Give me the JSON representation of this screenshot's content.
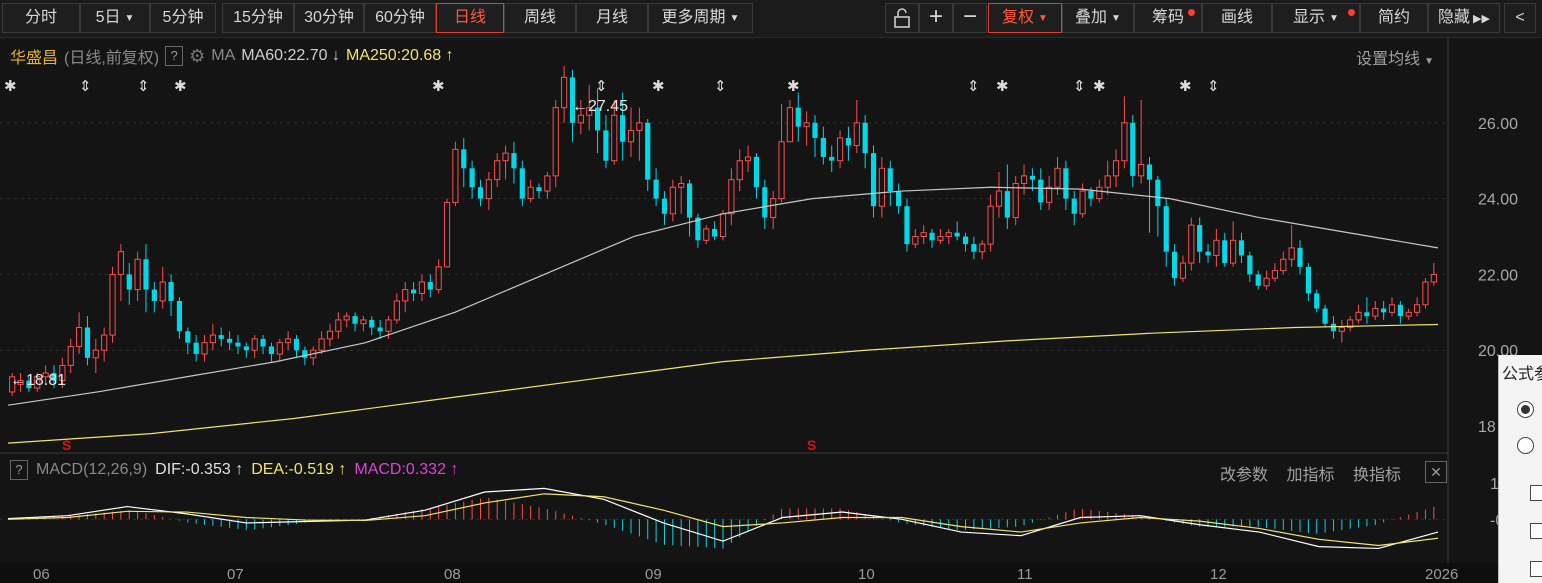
{
  "toolbar": {
    "periods": [
      "分时",
      "5日",
      "5分钟",
      "15分钟",
      "30分钟",
      "60分钟",
      "日线",
      "周线",
      "月线",
      "更多周期"
    ],
    "active_period": "日线",
    "tools": [
      "复权",
      "叠加",
      "筹码",
      "画线",
      "显示",
      "简约",
      "隐藏"
    ],
    "active_tool": "复权",
    "icons": [
      "unlock-icon",
      "plus-icon",
      "minus-icon",
      "fast-forward-icon",
      "chevron-left-icon"
    ]
  },
  "legend": {
    "name": "华盛昌",
    "mode": "(日线,前复权)",
    "help": "?",
    "ma_label": "MA",
    "ma60": "MA60:22.70",
    "ma60_arrow": "↓",
    "ma250": "MA250:20.68",
    "ma250_arrow": "↑",
    "settings": "设置均线"
  },
  "y_axis": {
    "labels": [
      "26.00",
      "24.00",
      "22.00",
      "20.00",
      "18"
    ]
  },
  "x_axis": {
    "labels": [
      "06",
      "07",
      "08",
      "09",
      "10",
      "11",
      "12",
      "2026"
    ]
  },
  "annotations": {
    "high": "27.45",
    "low": "18.81",
    "signal_marker": "S"
  },
  "macd": {
    "help": "?",
    "title": "MACD(12,26,9)",
    "dif": "DIF:-0.353",
    "dif_arrow": "↑",
    "dea": "DEA:-0.519",
    "dea_arrow": "↑",
    "macd": "MACD:0.332",
    "macd_arrow": "↑",
    "actions": [
      "改参数",
      "加指标",
      "换指标"
    ],
    "close": "✕",
    "y_labels": [
      "1",
      "-0"
    ]
  },
  "side_panel": {
    "title": "公式参"
  },
  "colors": {
    "up": "#ff4d4d",
    "down": "#00d8e8",
    "ma60": "#c8c8c8",
    "ma250": "#f3e36b",
    "dif": "#ffffff",
    "dea": "#f3e36b",
    "bg": "#141414"
  },
  "chart_data": {
    "type": "candlestick",
    "title": "华盛昌 (日线,前复权)",
    "ylim": [
      17.5,
      28
    ],
    "candles": [
      [
        18.9,
        19.3,
        19.4,
        18.8
      ],
      [
        19.1,
        19.2,
        19.4,
        18.9
      ],
      [
        19.2,
        19.0,
        19.3,
        18.9
      ],
      [
        19.0,
        19.3,
        19.4,
        18.9
      ],
      [
        19.3,
        19.4,
        19.6,
        19.1
      ],
      [
        19.4,
        19.2,
        19.6,
        19.0
      ],
      [
        19.2,
        19.6,
        19.8,
        19.0
      ],
      [
        19.6,
        20.1,
        20.3,
        19.4
      ],
      [
        20.1,
        20.6,
        21.0,
        19.9
      ],
      [
        20.6,
        19.8,
        20.9,
        19.6
      ],
      [
        19.8,
        20.0,
        20.3,
        19.4
      ],
      [
        20.0,
        20.4,
        20.6,
        19.7
      ],
      [
        20.4,
        22.0,
        22.2,
        20.2
      ],
      [
        22.0,
        22.6,
        22.8,
        21.3
      ],
      [
        22.0,
        21.6,
        22.3,
        21.2
      ],
      [
        21.6,
        22.4,
        22.6,
        21.3
      ],
      [
        22.4,
        21.6,
        22.8,
        21.0
      ],
      [
        21.6,
        21.3,
        21.8,
        21.0
      ],
      [
        21.3,
        21.8,
        22.2,
        21.1
      ],
      [
        21.8,
        21.3,
        22.0,
        20.9
      ],
      [
        21.3,
        20.5,
        21.4,
        20.3
      ],
      [
        20.5,
        20.2,
        20.6,
        19.9
      ],
      [
        20.2,
        19.9,
        20.4,
        19.7
      ],
      [
        19.9,
        20.2,
        20.4,
        19.7
      ],
      [
        20.2,
        20.4,
        20.7,
        20.0
      ],
      [
        20.4,
        20.3,
        20.6,
        20.1
      ],
      [
        20.3,
        20.2,
        20.5,
        20.0
      ],
      [
        20.2,
        20.1,
        20.4,
        19.9
      ],
      [
        20.1,
        20.0,
        20.2,
        19.8
      ],
      [
        20.0,
        20.3,
        20.4,
        19.8
      ],
      [
        20.3,
        20.1,
        20.4,
        19.9
      ],
      [
        20.1,
        19.9,
        20.2,
        19.7
      ],
      [
        19.9,
        20.2,
        20.3,
        19.7
      ],
      [
        20.2,
        20.3,
        20.5,
        20.0
      ],
      [
        20.3,
        20.0,
        20.4,
        19.8
      ],
      [
        20.0,
        19.8,
        20.1,
        19.6
      ],
      [
        19.8,
        20.0,
        20.1,
        19.6
      ],
      [
        20.0,
        20.3,
        20.5,
        19.9
      ],
      [
        20.3,
        20.5,
        20.7,
        20.1
      ],
      [
        20.5,
        20.8,
        21.0,
        20.3
      ],
      [
        20.8,
        20.9,
        21.0,
        20.6
      ],
      [
        20.9,
        20.7,
        21.0,
        20.5
      ],
      [
        20.7,
        20.8,
        20.9,
        20.5
      ],
      [
        20.8,
        20.6,
        20.9,
        20.4
      ],
      [
        20.6,
        20.5,
        20.8,
        20.3
      ],
      [
        20.5,
        20.8,
        20.9,
        20.3
      ],
      [
        20.8,
        21.3,
        21.5,
        20.7
      ],
      [
        21.3,
        21.6,
        21.8,
        21.0
      ],
      [
        21.6,
        21.5,
        21.8,
        21.3
      ],
      [
        21.5,
        21.8,
        22.0,
        21.3
      ],
      [
        21.8,
        21.6,
        22.0,
        21.4
      ],
      [
        21.6,
        22.2,
        22.4,
        21.5
      ],
      [
        22.2,
        23.9,
        24.0,
        22.2
      ],
      [
        23.9,
        25.3,
        25.5,
        23.8
      ],
      [
        25.3,
        24.8,
        25.6,
        24.3
      ],
      [
        24.8,
        24.3,
        25.0,
        24.0
      ],
      [
        24.3,
        24.0,
        24.5,
        23.8
      ],
      [
        24.0,
        24.5,
        24.7,
        23.7
      ],
      [
        24.5,
        25.0,
        25.2,
        24.3
      ],
      [
        25.0,
        25.2,
        25.4,
        24.5
      ],
      [
        25.2,
        24.8,
        25.5,
        24.4
      ],
      [
        24.8,
        24.0,
        25.0,
        23.8
      ],
      [
        24.0,
        24.3,
        24.5,
        23.9
      ],
      [
        24.3,
        24.2,
        24.4,
        24.0
      ],
      [
        24.2,
        24.6,
        24.7,
        24.0
      ],
      [
        24.6,
        26.4,
        26.6,
        24.3
      ],
      [
        26.4,
        27.2,
        27.5,
        26.0
      ],
      [
        27.2,
        26.0,
        27.4,
        25.5
      ],
      [
        26.0,
        26.2,
        26.6,
        25.7
      ],
      [
        26.2,
        26.4,
        27.0,
        25.8
      ],
      [
        26.4,
        25.8,
        26.9,
        25.2
      ],
      [
        25.8,
        25.0,
        26.2,
        24.8
      ],
      [
        25.0,
        26.2,
        26.6,
        24.9
      ],
      [
        26.2,
        25.5,
        26.8,
        25.0
      ],
      [
        25.5,
        25.8,
        26.4,
        25.1
      ],
      [
        25.8,
        26.0,
        26.4,
        25.0
      ],
      [
        26.0,
        24.5,
        26.1,
        24.2
      ],
      [
        24.5,
        24.0,
        24.8,
        23.8
      ],
      [
        24.0,
        23.6,
        24.2,
        23.3
      ],
      [
        23.6,
        24.3,
        24.5,
        23.4
      ],
      [
        24.3,
        24.4,
        24.6,
        23.6
      ],
      [
        24.4,
        23.5,
        24.5,
        23.0
      ],
      [
        23.5,
        22.9,
        23.6,
        22.7
      ],
      [
        22.9,
        23.2,
        23.3,
        22.8
      ],
      [
        23.2,
        23.0,
        23.4,
        22.9
      ],
      [
        23.0,
        23.6,
        23.7,
        22.9
      ],
      [
        23.6,
        24.5,
        24.8,
        23.3
      ],
      [
        24.5,
        25.0,
        25.3,
        24.2
      ],
      [
        25.0,
        25.1,
        25.4,
        24.7
      ],
      [
        25.1,
        24.3,
        25.2,
        24.0
      ],
      [
        24.3,
        23.5,
        24.5,
        23.2
      ],
      [
        23.5,
        24.0,
        24.2,
        23.2
      ],
      [
        24.0,
        25.5,
        26.5,
        23.9
      ],
      [
        25.5,
        26.4,
        26.6,
        25.5
      ],
      [
        26.4,
        25.9,
        26.8,
        25.5
      ],
      [
        25.9,
        26.0,
        26.3,
        25.4
      ],
      [
        26.0,
        25.6,
        26.2,
        25.1
      ],
      [
        25.6,
        25.1,
        25.9,
        24.9
      ],
      [
        25.1,
        25.0,
        25.4,
        24.7
      ],
      [
        25.0,
        25.6,
        25.8,
        24.8
      ],
      [
        25.6,
        25.4,
        25.9,
        25.0
      ],
      [
        25.4,
        26.0,
        26.6,
        25.2
      ],
      [
        26.0,
        25.2,
        26.2,
        24.8
      ],
      [
        25.2,
        23.8,
        25.4,
        23.5
      ],
      [
        23.8,
        24.8,
        25.1,
        23.5
      ],
      [
        24.8,
        24.2,
        25.0,
        23.8
      ],
      [
        24.2,
        23.8,
        24.4,
        23.6
      ],
      [
        23.8,
        22.8,
        24.0,
        22.6
      ],
      [
        22.8,
        23.0,
        23.2,
        22.7
      ],
      [
        23.0,
        23.1,
        23.3,
        22.8
      ],
      [
        23.1,
        22.9,
        23.2,
        22.7
      ],
      [
        22.9,
        23.0,
        23.2,
        22.8
      ],
      [
        23.0,
        23.1,
        23.2,
        22.8
      ],
      [
        23.1,
        23.0,
        23.4,
        22.9
      ],
      [
        23.0,
        22.8,
        23.1,
        22.6
      ],
      [
        22.8,
        22.6,
        23.0,
        22.4
      ],
      [
        22.6,
        22.8,
        22.9,
        22.4
      ],
      [
        22.8,
        23.8,
        24.1,
        22.6
      ],
      [
        23.8,
        24.2,
        24.7,
        23.5
      ],
      [
        24.2,
        23.5,
        24.9,
        23.2
      ],
      [
        23.5,
        24.4,
        24.6,
        23.3
      ],
      [
        24.4,
        24.6,
        24.9,
        24.1
      ],
      [
        24.6,
        24.5,
        24.8,
        24.2
      ],
      [
        24.5,
        23.9,
        24.8,
        23.7
      ],
      [
        23.9,
        24.3,
        24.6,
        23.7
      ],
      [
        24.3,
        24.8,
        25.1,
        24.1
      ],
      [
        24.8,
        24.0,
        25.0,
        23.7
      ],
      [
        24.0,
        23.6,
        24.2,
        23.3
      ],
      [
        23.6,
        24.2,
        24.4,
        23.5
      ],
      [
        24.2,
        24.0,
        24.3,
        23.8
      ],
      [
        24.0,
        24.3,
        24.5,
        23.9
      ],
      [
        24.3,
        24.6,
        25.0,
        24.1
      ],
      [
        24.6,
        25.0,
        25.3,
        24.3
      ],
      [
        25.0,
        26.0,
        26.7,
        24.8
      ],
      [
        26.0,
        24.6,
        26.2,
        24.3
      ],
      [
        24.6,
        24.9,
        26.6,
        24.4
      ],
      [
        24.9,
        24.5,
        25.1,
        23.1
      ],
      [
        24.5,
        23.8,
        24.6,
        23.0
      ],
      [
        23.8,
        22.6,
        24.0,
        22.2
      ],
      [
        22.6,
        21.9,
        22.8,
        21.7
      ],
      [
        21.9,
        22.3,
        22.5,
        21.8
      ],
      [
        22.3,
        23.3,
        23.5,
        22.1
      ],
      [
        23.3,
        22.6,
        23.5,
        22.3
      ],
      [
        22.6,
        22.5,
        22.8,
        22.3
      ],
      [
        22.5,
        22.9,
        23.2,
        22.2
      ],
      [
        22.9,
        22.3,
        23.1,
        22.2
      ],
      [
        22.3,
        22.9,
        23.4,
        22.2
      ],
      [
        22.9,
        22.5,
        23.1,
        22.3
      ],
      [
        22.5,
        22.0,
        22.6,
        21.8
      ],
      [
        22.0,
        21.7,
        22.1,
        21.6
      ],
      [
        21.7,
        21.9,
        22.1,
        21.6
      ],
      [
        21.9,
        22.1,
        22.3,
        21.8
      ],
      [
        22.1,
        22.4,
        22.6,
        22.0
      ],
      [
        22.4,
        22.7,
        23.3,
        22.2
      ],
      [
        22.7,
        22.2,
        22.9,
        22.0
      ],
      [
        22.2,
        21.5,
        22.3,
        21.3
      ],
      [
        21.5,
        21.1,
        21.6,
        21.0
      ],
      [
        21.1,
        20.7,
        21.2,
        20.6
      ],
      [
        20.7,
        20.5,
        20.9,
        20.3
      ],
      [
        20.5,
        20.6,
        20.8,
        20.2
      ],
      [
        20.6,
        20.8,
        20.9,
        20.5
      ],
      [
        20.8,
        21.0,
        21.2,
        20.7
      ],
      [
        21.0,
        20.9,
        21.4,
        20.7
      ],
      [
        20.9,
        21.1,
        21.3,
        20.8
      ],
      [
        21.1,
        21.0,
        21.3,
        20.8
      ],
      [
        21.0,
        21.2,
        21.4,
        20.9
      ],
      [
        21.2,
        20.9,
        21.3,
        20.7
      ],
      [
        20.9,
        21.0,
        21.1,
        20.8
      ],
      [
        21.0,
        21.2,
        21.4,
        20.9
      ],
      [
        21.2,
        21.8,
        21.9,
        21.1
      ],
      [
        21.8,
        22.0,
        22.3,
        21.7
      ]
    ],
    "ma60": [
      18.55,
      18.9,
      19.3,
      19.7,
      20.2,
      21.0,
      22.0,
      23.0,
      23.6,
      24.0,
      24.2,
      24.3,
      24.25,
      24.0,
      23.5,
      23.1,
      22.7
    ],
    "ma250": [
      17.55,
      17.8,
      18.2,
      18.7,
      19.2,
      19.7,
      20.0,
      20.25,
      20.45,
      20.6,
      20.68
    ],
    "macd": {
      "dif": [
        0.02,
        0.1,
        0.35,
        0.15,
        -0.1,
        -0.06,
        -0.02,
        0.25,
        0.75,
        0.85,
        0.55,
        -0.1,
        -0.6,
        0.05,
        0.2,
        0.0,
        -0.35,
        -0.45,
        0.05,
        0.1,
        -0.15,
        -0.35,
        -0.75,
        -0.8,
        -0.35
      ],
      "dea": [
        0.0,
        0.05,
        0.22,
        0.2,
        0.05,
        -0.02,
        -0.03,
        0.1,
        0.45,
        0.7,
        0.62,
        0.25,
        -0.2,
        -0.1,
        0.05,
        0.05,
        -0.2,
        -0.35,
        -0.1,
        0.05,
        -0.05,
        -0.25,
        -0.55,
        -0.72,
        -0.52
      ],
      "ylim": [
        -1.2,
        1.3
      ]
    }
  }
}
